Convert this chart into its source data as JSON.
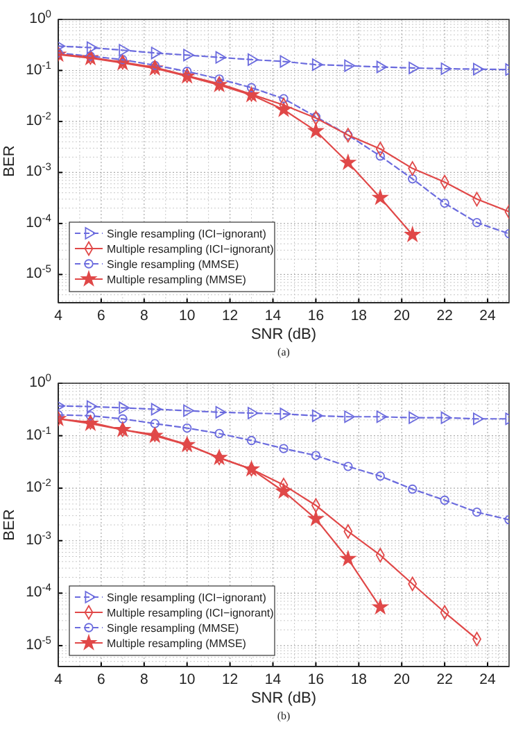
{
  "chart_data": [
    {
      "type": "line",
      "xlabel": "SNR (dB)",
      "ylabel": "BER",
      "annotations": [
        "(a)"
      ],
      "log": "y",
      "grid": true,
      "legend": "bottom left",
      "xlim": [
        4,
        25
      ],
      "ylim": [
        2.8e-06,
        1
      ],
      "xticks": [
        4,
        6,
        8,
        10,
        12,
        14,
        16,
        18,
        20,
        22,
        24
      ],
      "yticks": [
        {
          "value": 1e-05,
          "label": "10$^{-5}$"
        },
        {
          "value": 0.0001,
          "label": "10$^{-4}$"
        },
        {
          "value": 0.001,
          "label": "10$^{-3}$"
        },
        {
          "value": 0.01,
          "label": "10$^{-2}$"
        },
        {
          "value": 0.1,
          "label": "10$^{-1}$"
        },
        {
          "value": 1,
          "label": "10$^{0}$"
        }
      ],
      "x": [
        4,
        5.5,
        7,
        8.5,
        10,
        11.5,
        13,
        14.5,
        16,
        17.5,
        19,
        20.5,
        22,
        23.5,
        25
      ],
      "series": [
        {
          "name": "Single resampling (ICI−ignorant)",
          "color": "#6b6bde",
          "marker": "triangle",
          "line_style": "dashed",
          "values": [
            0.3,
            0.28,
            0.25,
            0.22,
            0.2,
            0.18,
            0.163,
            0.15,
            0.13,
            0.124,
            0.117,
            0.112,
            0.108,
            0.106,
            0.104
          ]
        },
        {
          "name": "Multiple resampling (ICI−ignorant)",
          "color": "#e04848",
          "marker": "diamond",
          "line_style": "solid",
          "values": [
            0.21,
            0.18,
            0.145,
            0.115,
            0.079,
            0.055,
            0.034,
            0.021,
            0.0117,
            0.0054,
            0.0029,
            0.0012,
            0.00065,
            0.0003,
            0.00017
          ]
        },
        {
          "name": "Single resampling (MMSE)",
          "color": "#6b6bde",
          "marker": "circle",
          "line_style": "dashed",
          "values": [
            0.22,
            0.19,
            0.163,
            0.126,
            0.096,
            0.068,
            0.046,
            0.028,
            0.0124,
            0.0054,
            0.0021,
            0.00075,
            0.00025,
            0.000104,
            6.3e-05
          ]
        },
        {
          "name": "Multiple resampling (MMSE)",
          "color": "#e04848",
          "marker": "star",
          "line_style": "solid",
          "values": [
            0.205,
            0.175,
            0.14,
            0.11,
            0.077,
            0.052,
            0.033,
            0.017,
            0.0065,
            0.00156,
            0.00032,
            6e-05,
            null,
            null,
            null
          ]
        }
      ]
    },
    {
      "type": "line",
      "xlabel": "SNR (dB)",
      "ylabel": "BER",
      "annotations": [
        "(b)"
      ],
      "log": "y",
      "grid": true,
      "legend": "bottom left",
      "xlim": [
        4,
        25
      ],
      "ylim": [
        4e-06,
        1
      ],
      "xticks": [
        4,
        6,
        8,
        10,
        12,
        14,
        16,
        18,
        20,
        22,
        24
      ],
      "yticks": [
        {
          "value": 1e-05,
          "label": "10$^{-5}$"
        },
        {
          "value": 0.0001,
          "label": "10$^{-4}$"
        },
        {
          "value": 0.001,
          "label": "10$^{-3}$"
        },
        {
          "value": 0.01,
          "label": "10$^{-2}$"
        },
        {
          "value": 0.1,
          "label": "10$^{-1}$"
        },
        {
          "value": 1,
          "label": "10$^{0}$"
        }
      ],
      "x": [
        4,
        5.5,
        7,
        8.5,
        10,
        11.5,
        13,
        14.5,
        16,
        17.5,
        19,
        20.5,
        22,
        23.5,
        25
      ],
      "series": [
        {
          "name": "Single resampling (ICI−ignorant)",
          "color": "#6b6bde",
          "marker": "triangle",
          "line_style": "dashed",
          "values": [
            0.37,
            0.36,
            0.34,
            0.32,
            0.3,
            0.28,
            0.27,
            0.26,
            0.24,
            0.23,
            0.23,
            0.22,
            0.22,
            0.21,
            0.21
          ]
        },
        {
          "name": "Multiple resampling (ICI−ignorant)",
          "color": "#e04848",
          "marker": "diamond",
          "line_style": "solid",
          "values": [
            0.21,
            0.18,
            0.13,
            0.105,
            0.068,
            0.038,
            0.023,
            0.0115,
            0.0047,
            0.0015,
            0.00053,
            0.00015,
            4.3e-05,
            1.33e-05,
            null
          ]
        },
        {
          "name": "Single resampling (MMSE)",
          "color": "#6b6bde",
          "marker": "circle",
          "line_style": "dashed",
          "values": [
            0.25,
            0.24,
            0.21,
            0.17,
            0.14,
            0.11,
            0.081,
            0.057,
            0.042,
            0.026,
            0.017,
            0.0096,
            0.0059,
            0.0035,
            0.0025
          ]
        },
        {
          "name": "Multiple resampling (MMSE)",
          "color": "#e04848",
          "marker": "star",
          "line_style": "solid",
          "values": [
            0.21,
            0.17,
            0.13,
            0.1,
            0.067,
            0.038,
            0.023,
            0.0087,
            0.0026,
            0.00045,
            5.4e-05,
            null,
            null,
            null,
            null
          ]
        }
      ]
    }
  ]
}
